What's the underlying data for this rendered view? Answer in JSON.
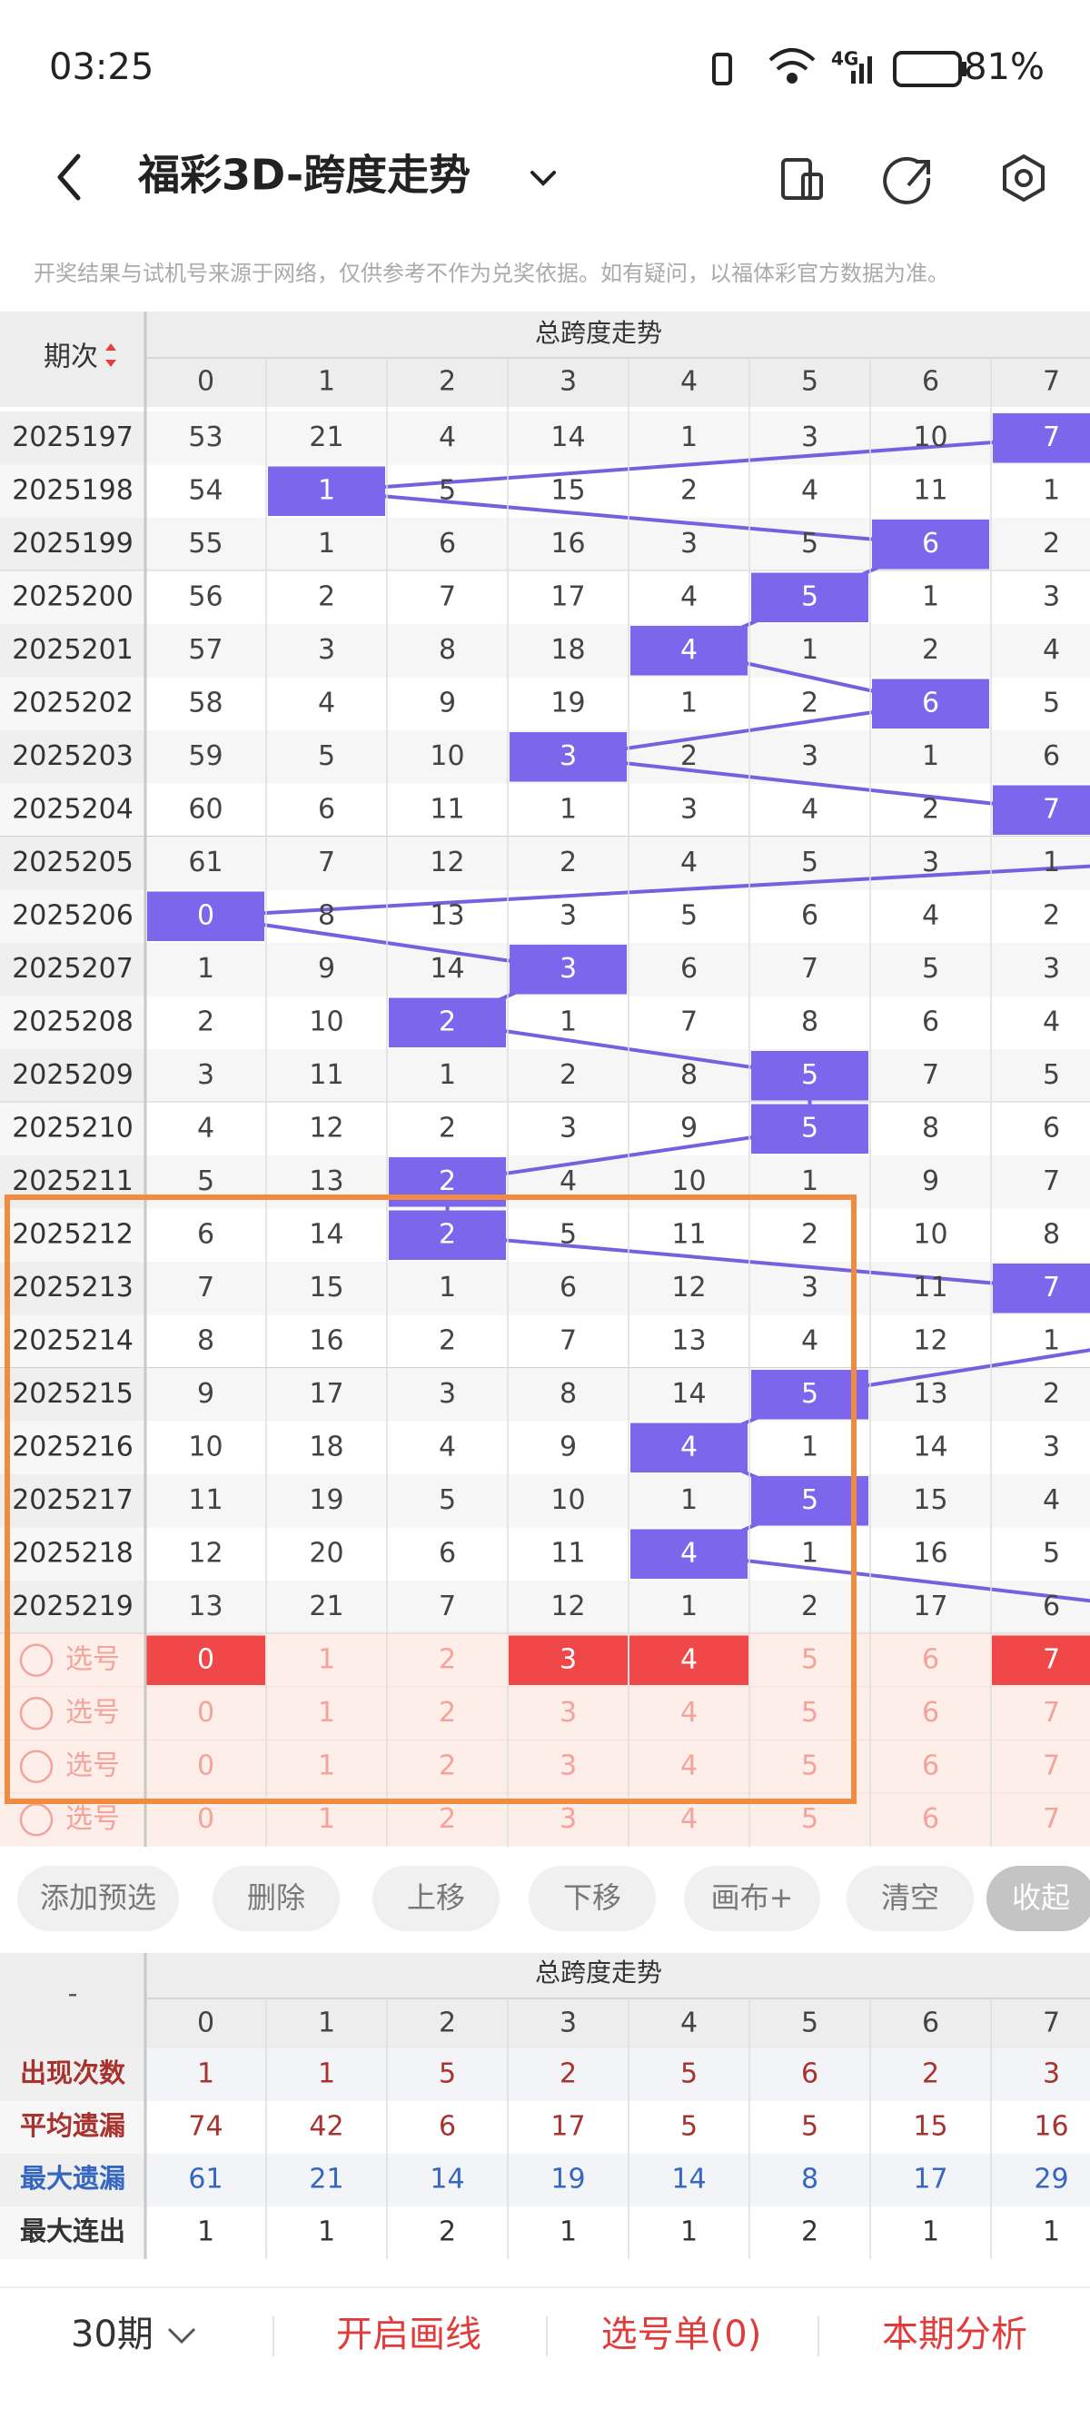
{
  "status_bar": {
    "time": "03:25",
    "network": "4G",
    "battery": "81%"
  },
  "header": {
    "title": "福彩3D-跨度走势"
  },
  "notice": "开奖结果与试机号来源于网络，仅供参考不作为兑奖依据。如有疑问，以福体彩官方数据为准。",
  "table": {
    "period_header": "期次",
    "group_title": "总跨度走势",
    "columns": [
      0,
      1,
      2,
      3,
      4,
      5,
      6,
      7
    ],
    "rows": [
      {
        "period": "2025197",
        "cells": [
          53,
          21,
          4,
          14,
          1,
          3,
          10,
          7
        ],
        "hit": 7
      },
      {
        "period": "2025198",
        "cells": [
          54,
          1,
          5,
          15,
          2,
          4,
          11,
          1
        ],
        "hit": 1
      },
      {
        "period": "2025199",
        "cells": [
          55,
          1,
          6,
          16,
          3,
          5,
          6,
          2
        ],
        "hit": 6
      },
      {
        "period": "2025200",
        "cells": [
          56,
          2,
          7,
          17,
          4,
          5,
          1,
          3
        ],
        "hit": 5
      },
      {
        "period": "2025201",
        "cells": [
          57,
          3,
          8,
          18,
          4,
          1,
          2,
          4
        ],
        "hit": 4
      },
      {
        "period": "2025202",
        "cells": [
          58,
          4,
          9,
          19,
          1,
          2,
          6,
          5
        ],
        "hit": 6
      },
      {
        "period": "2025203",
        "cells": [
          59,
          5,
          10,
          3,
          2,
          3,
          1,
          6
        ],
        "hit": 3
      },
      {
        "period": "2025204",
        "cells": [
          60,
          6,
          11,
          1,
          3,
          4,
          2,
          7
        ],
        "hit": 7
      },
      {
        "period": "2025205",
        "cells": [
          61,
          7,
          12,
          2,
          4,
          5,
          3,
          1
        ],
        "hit": null
      },
      {
        "period": "2025206",
        "cells": [
          0,
          8,
          13,
          3,
          5,
          6,
          4,
          2
        ],
        "hit": 0
      },
      {
        "period": "2025207",
        "cells": [
          1,
          9,
          14,
          3,
          6,
          7,
          5,
          3
        ],
        "hit": 3
      },
      {
        "period": "2025208",
        "cells": [
          2,
          10,
          2,
          1,
          7,
          8,
          6,
          4
        ],
        "hit": 2
      },
      {
        "period": "2025209",
        "cells": [
          3,
          11,
          1,
          2,
          8,
          5,
          7,
          5
        ],
        "hit": 5
      },
      {
        "period": "2025210",
        "cells": [
          4,
          12,
          2,
          3,
          9,
          5,
          8,
          6
        ],
        "hit": 5
      },
      {
        "period": "2025211",
        "cells": [
          5,
          13,
          2,
          4,
          10,
          1,
          9,
          7
        ],
        "hit": 2
      },
      {
        "period": "2025212",
        "cells": [
          6,
          14,
          2,
          5,
          11,
          2,
          10,
          8
        ],
        "hit": 2
      },
      {
        "period": "2025213",
        "cells": [
          7,
          15,
          1,
          6,
          12,
          3,
          11,
          7
        ],
        "hit": 7
      },
      {
        "period": "2025214",
        "cells": [
          8,
          16,
          2,
          7,
          13,
          4,
          12,
          1
        ],
        "hit": null
      },
      {
        "period": "2025215",
        "cells": [
          9,
          17,
          3,
          8,
          14,
          5,
          13,
          2
        ],
        "hit": 5
      },
      {
        "period": "2025216",
        "cells": [
          10,
          18,
          4,
          9,
          4,
          1,
          14,
          3
        ],
        "hit": 4
      },
      {
        "period": "2025217",
        "cells": [
          11,
          19,
          5,
          10,
          1,
          5,
          15,
          4
        ],
        "hit": 5
      },
      {
        "period": "2025218",
        "cells": [
          12,
          20,
          6,
          11,
          4,
          1,
          16,
          5
        ],
        "hit": 4
      },
      {
        "period": "2025219",
        "cells": [
          13,
          21,
          7,
          12,
          1,
          2,
          17,
          6
        ],
        "hit": null
      }
    ],
    "pick_rows": [
      {
        "label": "选号",
        "selected": [
          true,
          false,
          false,
          true,
          true,
          false,
          false,
          true
        ]
      },
      {
        "label": "选号",
        "selected": [
          false,
          false,
          false,
          false,
          false,
          false,
          false,
          false
        ]
      },
      {
        "label": "选号",
        "selected": [
          false,
          false,
          false,
          false,
          false,
          false,
          false,
          false
        ]
      },
      {
        "label": "选号",
        "selected": [
          false,
          false,
          false,
          false,
          false,
          false,
          false,
          false
        ]
      }
    ]
  },
  "buttons": [
    "添加预选",
    "删除",
    "上移",
    "下移",
    "画布+",
    "清空",
    "收起"
  ],
  "stats": {
    "corner": "-",
    "group_title": "总跨度走势",
    "columns": [
      0,
      1,
      2,
      3,
      4,
      5,
      6,
      7
    ],
    "rows": [
      {
        "label": "出现次数",
        "color": "#a8322d",
        "values": [
          1,
          1,
          5,
          2,
          5,
          6,
          2,
          3
        ]
      },
      {
        "label": "平均遗漏",
        "color": "#a8322d",
        "values": [
          74,
          42,
          6,
          17,
          5,
          5,
          15,
          16
        ]
      },
      {
        "label": "最大遗漏",
        "color": "#3566c0",
        "values": [
          61,
          21,
          14,
          19,
          14,
          8,
          17,
          29
        ]
      },
      {
        "label": "最大连出",
        "color": "#333333",
        "values": [
          1,
          1,
          2,
          1,
          1,
          2,
          1,
          1
        ]
      }
    ]
  },
  "footer": {
    "period_select": "30期",
    "actions": [
      "开启画线",
      "选号单(0)",
      "本期分析"
    ]
  }
}
